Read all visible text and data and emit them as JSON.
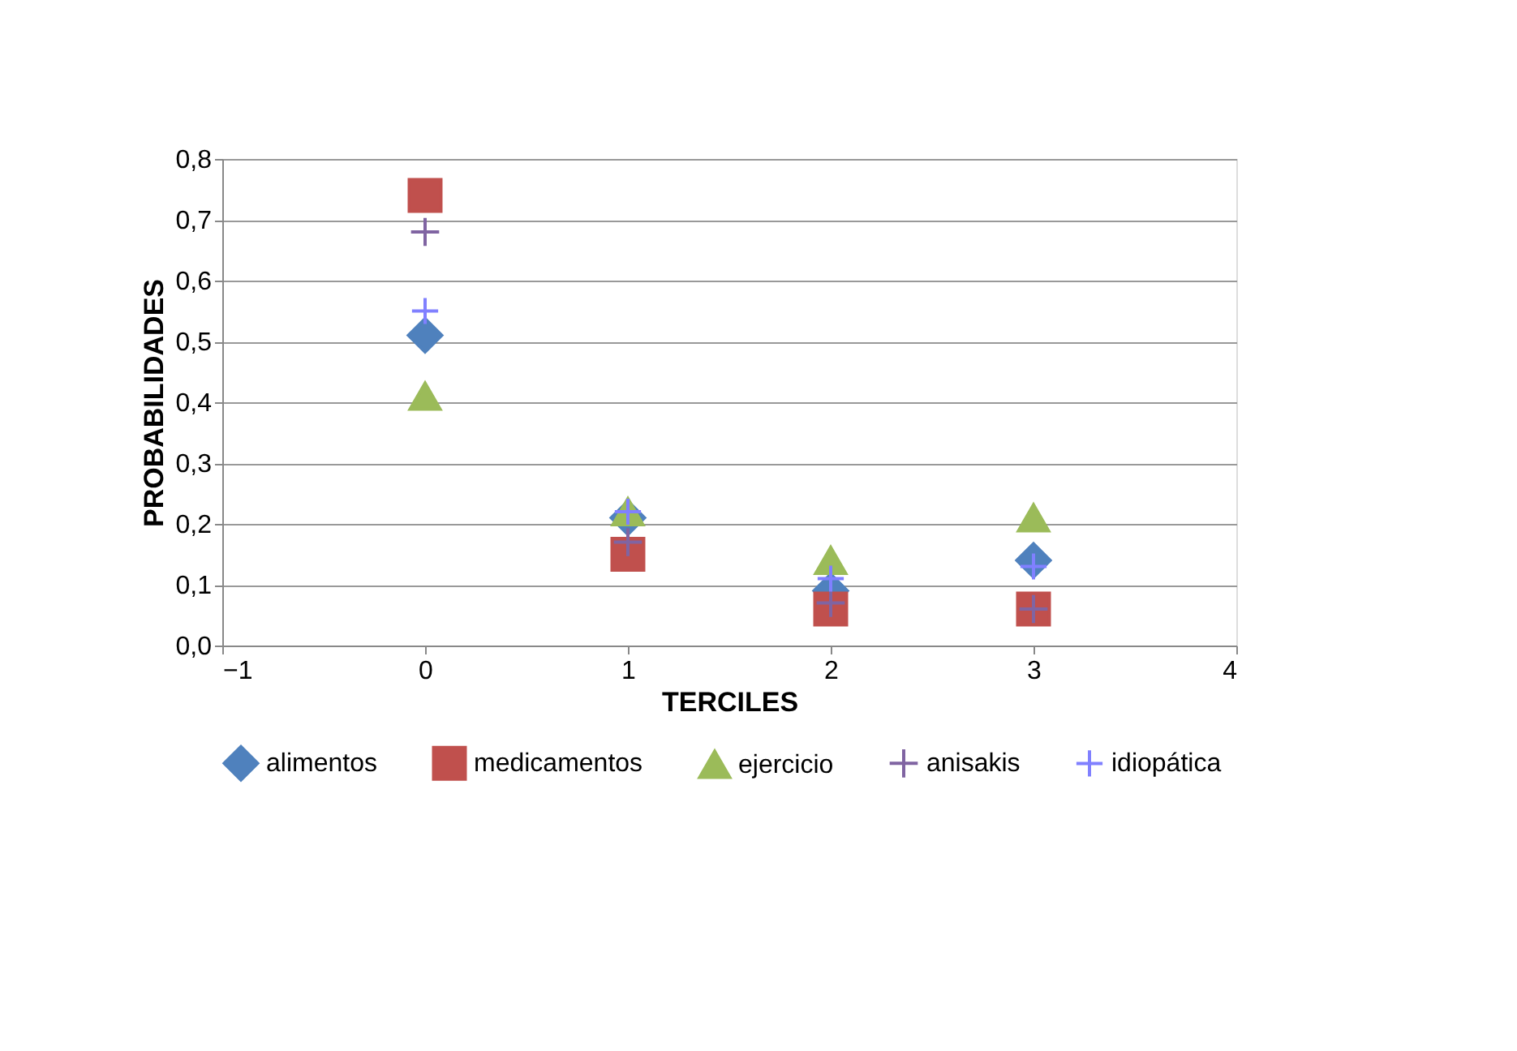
{
  "chart_data": {
    "type": "scatter",
    "xlabel": "TERCILES",
    "ylabel": "PROBABILIDADES",
    "x": [
      0,
      1,
      2,
      3
    ],
    "series": [
      {
        "name": "alimentos",
        "color": "#4f81bd",
        "marker": "diamond",
        "values": [
          0.51,
          0.21,
          0.09,
          0.14
        ]
      },
      {
        "name": "medicamentos",
        "color": "#c0504d",
        "marker": "square",
        "values": [
          0.74,
          0.15,
          0.06,
          0.06
        ]
      },
      {
        "name": "ejercicio",
        "color": "#9bbb59",
        "marker": "triangle",
        "values": [
          0.41,
          0.22,
          0.14,
          0.21
        ]
      },
      {
        "name": "anisakis",
        "color": "#8064a2",
        "marker": "cross",
        "values": [
          0.68,
          0.17,
          0.07,
          0.06
        ]
      },
      {
        "name": "idiopática",
        "color": "#8080ff",
        "marker": "cross",
        "values": [
          0.55,
          0.22,
          0.11,
          0.13
        ]
      }
    ],
    "xlim": [
      -1,
      4
    ],
    "xticks": [
      -1,
      0,
      1,
      2,
      3,
      4
    ],
    "ylim": [
      0,
      0.8
    ],
    "yticks": [
      {
        "value": 0,
        "label": "0,0"
      },
      {
        "value": 0.1,
        "label": "0,1"
      },
      {
        "value": 0.2,
        "label": "0,2"
      },
      {
        "value": 0.3,
        "label": "0,3"
      },
      {
        "value": 0.4,
        "label": "0,4"
      },
      {
        "value": 0.5,
        "label": "0,5"
      },
      {
        "value": 0.6,
        "label": "0,6"
      },
      {
        "value": 0.7,
        "label": "0,7"
      },
      {
        "value": 0.8,
        "label": "0,8"
      }
    ],
    "grid": "y",
    "legend": "bottom"
  }
}
